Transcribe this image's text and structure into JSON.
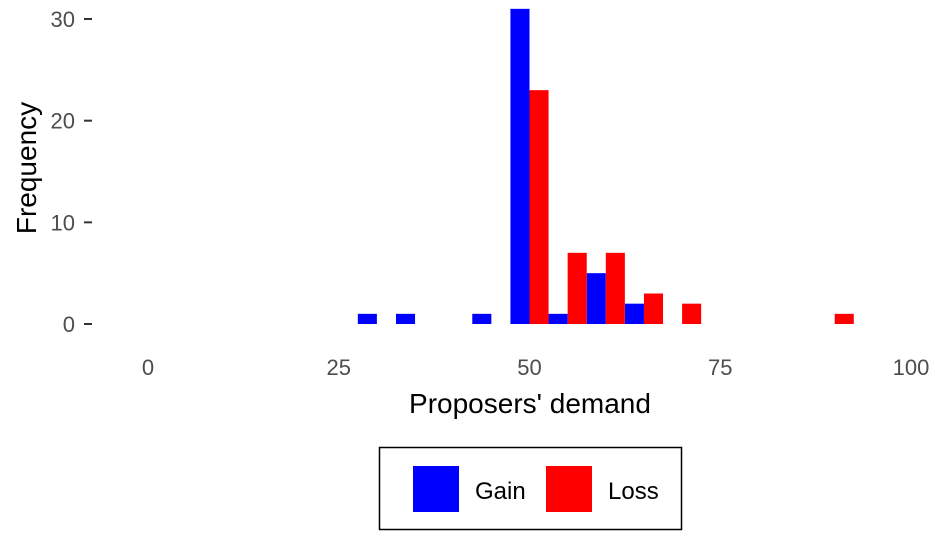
{
  "chart_data": {
    "type": "bar",
    "title": "",
    "xlabel": "Proposers' demand",
    "ylabel": "Frequency",
    "xlim": [
      0,
      100
    ],
    "ylim": [
      0,
      31
    ],
    "x_ticks": [
      0,
      25,
      50,
      75,
      100
    ],
    "x_tick_labels": [
      "0",
      "25",
      "50",
      "75",
      "100"
    ],
    "y_ticks": [
      0,
      10,
      20,
      30
    ],
    "y_tick_labels": [
      "0",
      "10",
      "20",
      "30"
    ],
    "grid": false,
    "legend_position": "bottom",
    "series": [
      {
        "name": "Gain",
        "color": "#0000FF",
        "bins": [
          {
            "x": 30,
            "value": 1
          },
          {
            "x": 35,
            "value": 1
          },
          {
            "x": 45,
            "value": 1
          },
          {
            "x": 50,
            "value": 31
          },
          {
            "x": 55,
            "value": 1
          },
          {
            "x": 60,
            "value": 5
          },
          {
            "x": 65,
            "value": 2
          }
        ]
      },
      {
        "name": "Loss",
        "color": "#FF0000",
        "bins": [
          {
            "x": 50,
            "value": 23
          },
          {
            "x": 55,
            "value": 7
          },
          {
            "x": 60,
            "value": 7
          },
          {
            "x": 65,
            "value": 3
          },
          {
            "x": 70,
            "value": 2
          },
          {
            "x": 90,
            "value": 1
          }
        ]
      }
    ]
  }
}
